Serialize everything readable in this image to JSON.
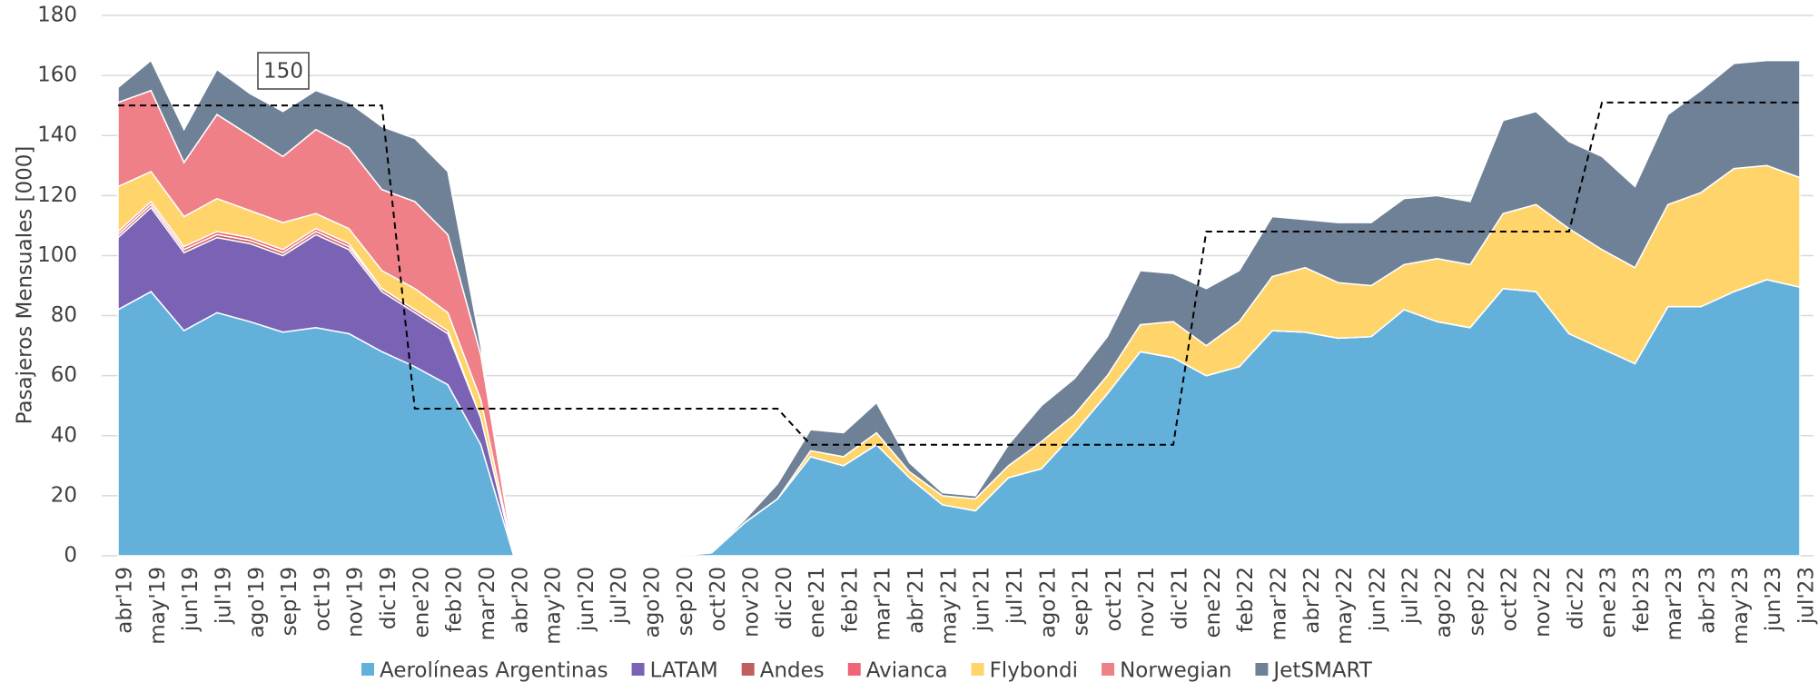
{
  "chart_data": {
    "type": "stacked_area",
    "y_label": "Pasajeros Mensuales [000]",
    "categories": [
      "abr'19",
      "may'19",
      "jun'19",
      "jul'19",
      "ago'19",
      "sep'19",
      "oct'19",
      "nov'19",
      "dic'19",
      "ene'20",
      "feb'20",
      "mar'20",
      "abr'20",
      "may'20",
      "jun'20",
      "jul'20",
      "ago'20",
      "sep'20",
      "oct'20",
      "nov'20",
      "dic'20",
      "ene'21",
      "feb'21",
      "mar'21",
      "abr'21",
      "may'21",
      "jun'21",
      "jul'21",
      "ago'21",
      "sep'21",
      "oct'21",
      "nov'21",
      "dic'21",
      "ene'22",
      "feb'22",
      "mar'22",
      "abr'22",
      "may'22",
      "jun'22",
      "jul'22",
      "ago'22",
      "sep'22",
      "oct'22",
      "nov'22",
      "dic'22",
      "ene'23",
      "feb'23",
      "mar'23",
      "abr'23",
      "may'23",
      "jun'23",
      "jul'23"
    ],
    "series": [
      {
        "name": "Aerolíneas Argentinas",
        "color": "#63b1da",
        "values": [
          82,
          88,
          75,
          81,
          78,
          74.5,
          76,
          74,
          68,
          63,
          57,
          37,
          0,
          0,
          0,
          0,
          0,
          0,
          1,
          11,
          19,
          33,
          30,
          37,
          26,
          17,
          15,
          26,
          29,
          41,
          54,
          68,
          66,
          60,
          63,
          75,
          74.5,
          72.5,
          73,
          82,
          78,
          76,
          89,
          88,
          74,
          69,
          64,
          83,
          83,
          88,
          92,
          89.5
        ]
      },
      {
        "name": "LATAM",
        "color": "#7a63b5",
        "values": [
          24,
          28,
          26,
          25,
          26,
          25.5,
          31,
          28,
          20,
          18,
          17,
          9,
          0,
          0,
          0,
          0,
          0,
          0,
          0,
          0,
          0,
          0,
          0,
          0,
          0,
          0,
          0,
          0,
          0,
          0,
          0,
          0,
          0,
          0,
          0,
          0,
          0,
          0,
          0,
          0,
          0,
          0,
          0,
          0,
          0,
          0,
          0,
          0,
          0,
          0,
          0,
          0
        ]
      },
      {
        "name": "Andes",
        "color": "#c0605e",
        "values": [
          1,
          1,
          1,
          1,
          1,
          1,
          1,
          1,
          1,
          1,
          1,
          0,
          0,
          0,
          0,
          0,
          0,
          0,
          0,
          0,
          0,
          0,
          0,
          0,
          0,
          0,
          0,
          0,
          0,
          0,
          0,
          0,
          0,
          0,
          0,
          0,
          0,
          0,
          0,
          0,
          0,
          0,
          0,
          0,
          0,
          0,
          0,
          0,
          0,
          0,
          0,
          0
        ]
      },
      {
        "name": "Avianca",
        "color": "#ef6577",
        "values": [
          1,
          1,
          1,
          1,
          1,
          1,
          1,
          1,
          0,
          0,
          0,
          0,
          0,
          0,
          0,
          0,
          0,
          0,
          0,
          0,
          0,
          0,
          0,
          0,
          0,
          0,
          0,
          0,
          0,
          0,
          0,
          0,
          0,
          0,
          0,
          0,
          0,
          0,
          0,
          0,
          0,
          0,
          0,
          0,
          0,
          0,
          0,
          0,
          0,
          0,
          0,
          0
        ]
      },
      {
        "name": "Flybondi",
        "color": "#fed46b",
        "values": [
          15,
          10,
          10,
          11,
          9,
          9,
          5,
          5,
          6,
          7,
          6,
          6,
          0,
          0,
          0,
          0,
          0,
          0,
          0,
          0,
          0,
          2,
          3,
          4,
          2,
          3,
          4,
          4,
          9,
          6,
          6,
          9,
          12,
          10,
          15,
          18,
          21.5,
          18.5,
          17,
          15,
          21,
          21,
          25,
          29,
          35,
          33,
          32,
          34,
          38,
          41,
          38,
          36.5
        ]
      },
      {
        "name": "Norwegian",
        "color": "#ef8088",
        "values": [
          28,
          27,
          18,
          28,
          25,
          22,
          28,
          27,
          27,
          29,
          26,
          15,
          0,
          0,
          0,
          0,
          0,
          0,
          0,
          0,
          0,
          0,
          0,
          0,
          0,
          0,
          0,
          0,
          0,
          0,
          0,
          0,
          0,
          0,
          0,
          0,
          0,
          0,
          0,
          0,
          0,
          0,
          0,
          0,
          0,
          0,
          0,
          0,
          0,
          0,
          0,
          0
        ]
      },
      {
        "name": "JetSMART",
        "color": "#6f8197",
        "values": [
          5,
          10,
          11,
          15,
          14,
          15,
          13,
          15,
          21,
          21,
          21,
          3,
          0,
          0,
          0,
          0,
          0,
          0,
          0,
          1,
          5,
          7,
          8,
          10,
          3,
          1,
          1,
          7,
          12,
          12,
          13,
          18,
          16,
          19,
          17,
          20,
          16,
          20,
          21,
          22,
          21,
          21,
          31,
          31,
          29,
          31,
          27,
          30,
          34,
          35,
          35,
          39
        ]
      }
    ],
    "reference": {
      "color": "#000000",
      "dashed": true,
      "values": [
        150,
        150,
        150,
        150,
        150,
        150,
        150,
        150,
        150,
        49,
        49,
        49,
        49,
        49,
        49,
        49,
        49,
        49,
        49,
        49,
        49,
        37,
        37,
        37,
        37,
        37,
        37,
        37,
        37,
        37,
        37,
        37,
        37,
        108,
        108,
        108,
        108,
        108,
        108,
        108,
        108,
        108,
        108,
        108,
        108,
        151,
        151,
        151,
        151,
        151,
        151,
        151
      ]
    },
    "annotation": "150",
    "ylim": [
      0,
      180
    ],
    "yticks": [
      0,
      20,
      40,
      60,
      80,
      100,
      120,
      140,
      160,
      180
    ],
    "grid": true
  }
}
